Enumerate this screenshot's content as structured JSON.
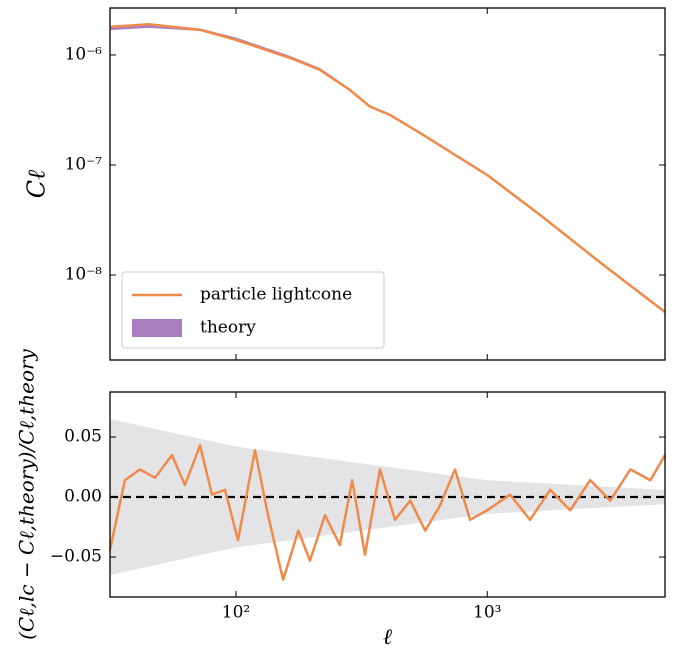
{
  "chart_data": [
    {
      "type": "line",
      "y_label": "Cℓ",
      "log_x": true,
      "log_y": true,
      "xlim": [
        31.5,
        5100
      ],
      "ylim": [
        1.69e-09,
        2.67e-06
      ],
      "xticks": [
        100,
        1000
      ],
      "xtick_labels": false,
      "yticks": [
        {
          "value": 1e-06,
          "label": "10⁻⁶"
        },
        {
          "value": 1e-07,
          "label": "10⁻⁷"
        },
        {
          "value": 1e-08,
          "label": "10⁻⁸"
        }
      ],
      "legend": "lower left",
      "series": [
        {
          "name": "theory",
          "kind": "band",
          "color": "#a97fc1",
          "x": [
            31.5,
            45,
            72,
            100,
            164,
            216,
            284,
            341,
            410,
            541,
            1000,
            1626,
            2830,
            5100
          ],
          "lower": [
            1.68e-06,
            1.76e-06,
            1.65e-06,
            1.36e-06,
            9.3e-07,
            7.2e-07,
            4.75e-07,
            3.35e-07,
            2.8e-07,
            1.92e-07,
            8e-08,
            3.45e-08,
            1.27e-08,
            4.55e-09
          ],
          "upper": [
            1.82e-06,
            1.9e-06,
            1.74e-06,
            1.44e-06,
            9.8e-07,
            7.6e-07,
            4.95e-07,
            3.5e-07,
            2.9e-07,
            1.99e-07,
            8.2e-08,
            3.55e-08,
            1.31e-08,
            4.65e-09
          ]
        },
        {
          "name": "particle lightcone",
          "kind": "line",
          "color": "#f08a4b",
          "x": [
            31.5,
            45,
            72,
            100,
            164,
            216,
            284,
            341,
            410,
            541,
            1000,
            1626,
            2830,
            5100
          ],
          "values": [
            1.8e-06,
            1.9e-06,
            1.69e-06,
            1.37e-06,
            9.4e-07,
            7.3e-07,
            4.8e-07,
            3.4e-07,
            2.85e-07,
            1.95e-07,
            8.1e-08,
            3.5e-08,
            1.29e-08,
            4.6e-09
          ]
        }
      ]
    },
    {
      "type": "line",
      "x_label": "ℓ",
      "y_label": "(Cℓ,lc − Cℓ,theory)/Cℓ,theory",
      "log_x": true,
      "xlim": [
        31.5,
        5100
      ],
      "ylim": [
        -0.0833,
        0.0875
      ],
      "xticks": [
        {
          "value": 100,
          "label": "10²"
        },
        {
          "value": 1000,
          "label": "10³"
        }
      ],
      "xtick_labels": true,
      "yticks": [
        0.05,
        {
          "value": 0,
          "label": "0.00"
        },
        {
          "value": -0.05,
          "label": "−0.05"
        }
      ],
      "hline": {
        "value": 0,
        "style": "dashed",
        "color": "#000000"
      },
      "series": [
        {
          "kind": "error_band",
          "color": "#e4e4e7",
          "x": [
            31.5,
            100,
            1000,
            5100
          ],
          "error": [
            0.065,
            0.042,
            0.014,
            0.006
          ]
        },
        {
          "kind": "line",
          "color": "#f08a4b",
          "x": [
            31.5,
            36.1,
            41.5,
            47.6,
            55.6,
            62.6,
            71.9,
            80.2,
            90.4,
            101.8,
            119,
            134,
            154,
            177,
            197,
            226,
            259,
            290,
            326,
            374,
            429,
            494,
            566,
            649,
            744,
            854,
            1000,
            1232,
            1481,
            1780,
            2139,
            2570,
            3089,
            3712,
            4461,
            5100
          ],
          "values": [
            -0.044,
            0.014,
            0.023,
            0.016,
            0.035,
            0.01,
            0.043,
            0.002,
            0.006,
            -0.036,
            0.039,
            -0.015,
            -0.069,
            -0.028,
            -0.053,
            -0.015,
            -0.04,
            0.014,
            -0.048,
            0.023,
            -0.019,
            -0.003,
            -0.028,
            -0.007,
            0.023,
            -0.019,
            -0.011,
            0.002,
            -0.019,
            0.006,
            -0.011,
            0.014,
            -0.003,
            0.023,
            0.014,
            0.035
          ]
        }
      ]
    }
  ]
}
